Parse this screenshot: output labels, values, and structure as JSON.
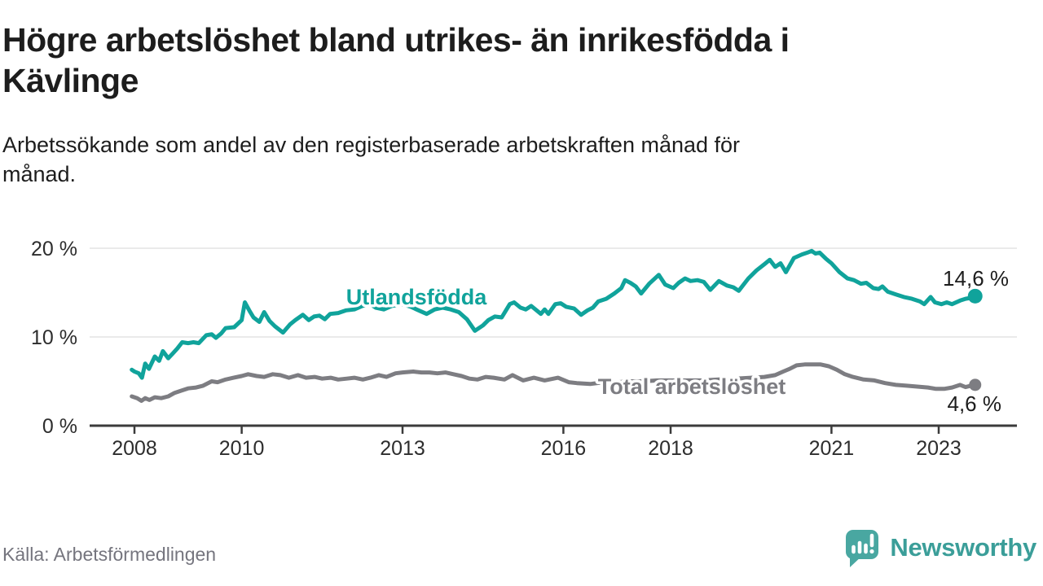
{
  "header": {
    "title": "Högre arbetslöshet bland utrikes- än inrikesfödda i\nKävlinge",
    "subtitle": "Arbetssökande som andel av den registerbaserade arbetskraften månad för\nmånad."
  },
  "footer": {
    "source": "Källa: Arbetsförmedlingen",
    "brand": "Newsworthy"
  },
  "colors": {
    "accent_teal": "#10a39b",
    "line_gray": "#7d7d82",
    "brand_teal": "#3b9e99",
    "icon_teal": "#49a7a1",
    "title_text": "#1d1d1d",
    "muted_text": "#75757e",
    "axis": "#3b3b3b",
    "tick_label": "#2d2d2d",
    "gridline": "#e3e3e3"
  },
  "chart_data": {
    "type": "line",
    "title": "Högre arbetslöshet bland utrikes- än inrikesfödda i Kävlinge",
    "subtitle": "Arbetssökande som andel av den registerbaserade arbetskraften månad för månad.",
    "grid": "horizontal-only",
    "legend_position": "inline-labels",
    "xlim": [
      2007.8,
      2024.3
    ],
    "ylim": [
      0,
      21.5
    ],
    "x_ticks": [
      {
        "value": 2008,
        "label": "2008"
      },
      {
        "value": 2010,
        "label": "2010"
      },
      {
        "value": 2013,
        "label": "2013"
      },
      {
        "value": 2016,
        "label": "2016"
      },
      {
        "value": 2018,
        "label": "2018"
      },
      {
        "value": 2021,
        "label": "2021"
      },
      {
        "value": 2023,
        "label": "2023"
      }
    ],
    "y_ticks": [
      {
        "value": 0,
        "label": "0 %"
      },
      {
        "value": 10,
        "label": "10 %"
      },
      {
        "value": 20,
        "label": "20 %"
      }
    ],
    "series": [
      {
        "name": "Utlandsfödda",
        "color": "#10a39b",
        "end_value": 14.6,
        "end_label": "14,6 %",
        "points": [
          [
            2007.95,
            6.3
          ],
          [
            2008.0,
            6.1
          ],
          [
            2008.08,
            5.9
          ],
          [
            2008.14,
            5.4
          ],
          [
            2008.2,
            7.0
          ],
          [
            2008.27,
            6.4
          ],
          [
            2008.38,
            7.8
          ],
          [
            2008.46,
            7.3
          ],
          [
            2008.53,
            8.4
          ],
          [
            2008.63,
            7.6
          ],
          [
            2008.71,
            8.1
          ],
          [
            2008.8,
            8.7
          ],
          [
            2008.89,
            9.4
          ],
          [
            2009.0,
            9.3
          ],
          [
            2009.1,
            9.4
          ],
          [
            2009.2,
            9.3
          ],
          [
            2009.34,
            10.2
          ],
          [
            2009.44,
            10.3
          ],
          [
            2009.52,
            9.9
          ],
          [
            2009.62,
            10.4
          ],
          [
            2009.7,
            11.0
          ],
          [
            2009.86,
            11.1
          ],
          [
            2010.0,
            11.9
          ],
          [
            2010.06,
            13.9
          ],
          [
            2010.15,
            12.9
          ],
          [
            2010.22,
            12.2
          ],
          [
            2010.33,
            11.7
          ],
          [
            2010.42,
            12.8
          ],
          [
            2010.52,
            11.8
          ],
          [
            2010.62,
            11.2
          ],
          [
            2010.77,
            10.5
          ],
          [
            2010.9,
            11.4
          ],
          [
            2011.0,
            11.9
          ],
          [
            2011.14,
            12.5
          ],
          [
            2011.25,
            11.9
          ],
          [
            2011.35,
            12.3
          ],
          [
            2011.45,
            12.4
          ],
          [
            2011.55,
            12.0
          ],
          [
            2011.65,
            12.6
          ],
          [
            2011.8,
            12.7
          ],
          [
            2011.95,
            13.0
          ],
          [
            2012.1,
            13.1
          ],
          [
            2012.25,
            13.5
          ],
          [
            2012.4,
            13.7
          ],
          [
            2012.5,
            13.3
          ],
          [
            2012.65,
            13.1
          ],
          [
            2012.8,
            13.5
          ],
          [
            2013.0,
            13.7
          ],
          [
            2013.15,
            13.4
          ],
          [
            2013.3,
            13.0
          ],
          [
            2013.45,
            12.6
          ],
          [
            2013.6,
            13.1
          ],
          [
            2013.75,
            13.3
          ],
          [
            2013.9,
            13.1
          ],
          [
            2014.05,
            12.8
          ],
          [
            2014.2,
            12.0
          ],
          [
            2014.35,
            10.7
          ],
          [
            2014.5,
            11.3
          ],
          [
            2014.6,
            11.9
          ],
          [
            2014.72,
            12.3
          ],
          [
            2014.85,
            12.2
          ],
          [
            2015.0,
            13.7
          ],
          [
            2015.08,
            13.9
          ],
          [
            2015.2,
            13.3
          ],
          [
            2015.3,
            13.1
          ],
          [
            2015.4,
            13.5
          ],
          [
            2015.5,
            13.0
          ],
          [
            2015.58,
            12.6
          ],
          [
            2015.65,
            13.1
          ],
          [
            2015.72,
            12.6
          ],
          [
            2015.85,
            13.7
          ],
          [
            2015.95,
            13.8
          ],
          [
            2016.05,
            13.4
          ],
          [
            2016.2,
            13.2
          ],
          [
            2016.33,
            12.5
          ],
          [
            2016.45,
            13.0
          ],
          [
            2016.55,
            13.3
          ],
          [
            2016.65,
            14.0
          ],
          [
            2016.8,
            14.3
          ],
          [
            2016.95,
            14.9
          ],
          [
            2017.08,
            15.5
          ],
          [
            2017.15,
            16.4
          ],
          [
            2017.25,
            16.1
          ],
          [
            2017.35,
            15.7
          ],
          [
            2017.45,
            14.9
          ],
          [
            2017.6,
            16.0
          ],
          [
            2017.78,
            17.0
          ],
          [
            2017.9,
            15.9
          ],
          [
            2018.05,
            15.5
          ],
          [
            2018.15,
            16.1
          ],
          [
            2018.27,
            16.6
          ],
          [
            2018.37,
            16.3
          ],
          [
            2018.5,
            16.4
          ],
          [
            2018.62,
            16.2
          ],
          [
            2018.74,
            15.3
          ],
          [
            2018.9,
            16.3
          ],
          [
            2019.05,
            15.8
          ],
          [
            2019.17,
            15.6
          ],
          [
            2019.27,
            15.2
          ],
          [
            2019.45,
            16.6
          ],
          [
            2019.6,
            17.5
          ],
          [
            2019.75,
            18.2
          ],
          [
            2019.85,
            18.7
          ],
          [
            2019.95,
            17.9
          ],
          [
            2020.05,
            18.3
          ],
          [
            2020.15,
            17.3
          ],
          [
            2020.3,
            18.9
          ],
          [
            2020.45,
            19.3
          ],
          [
            2020.55,
            19.5
          ],
          [
            2020.63,
            19.7
          ],
          [
            2020.7,
            19.4
          ],
          [
            2020.78,
            19.5
          ],
          [
            2020.9,
            18.8
          ],
          [
            2021.0,
            18.3
          ],
          [
            2021.15,
            17.3
          ],
          [
            2021.3,
            16.6
          ],
          [
            2021.42,
            16.4
          ],
          [
            2021.55,
            16.0
          ],
          [
            2021.65,
            16.1
          ],
          [
            2021.78,
            15.5
          ],
          [
            2021.88,
            15.4
          ],
          [
            2021.95,
            15.7
          ],
          [
            2022.05,
            15.1
          ],
          [
            2022.2,
            14.8
          ],
          [
            2022.35,
            14.5
          ],
          [
            2022.5,
            14.3
          ],
          [
            2022.65,
            14.0
          ],
          [
            2022.73,
            13.7
          ],
          [
            2022.85,
            14.5
          ],
          [
            2022.93,
            13.9
          ],
          [
            2023.05,
            13.7
          ],
          [
            2023.15,
            13.9
          ],
          [
            2023.25,
            13.7
          ],
          [
            2023.4,
            14.1
          ],
          [
            2023.5,
            14.3
          ],
          [
            2023.6,
            14.4
          ],
          [
            2023.68,
            14.6
          ]
        ]
      },
      {
        "name": "Total arbetslöshet",
        "color": "#7d7d82",
        "end_value": 4.6,
        "end_label": "4,6 %",
        "points": [
          [
            2007.95,
            3.3
          ],
          [
            2008.05,
            3.1
          ],
          [
            2008.13,
            2.8
          ],
          [
            2008.2,
            3.1
          ],
          [
            2008.28,
            2.9
          ],
          [
            2008.38,
            3.2
          ],
          [
            2008.5,
            3.1
          ],
          [
            2008.63,
            3.3
          ],
          [
            2008.75,
            3.7
          ],
          [
            2008.85,
            3.9
          ],
          [
            2009.0,
            4.2
          ],
          [
            2009.15,
            4.3
          ],
          [
            2009.28,
            4.5
          ],
          [
            2009.44,
            5.0
          ],
          [
            2009.55,
            4.9
          ],
          [
            2009.7,
            5.2
          ],
          [
            2009.85,
            5.4
          ],
          [
            2010.0,
            5.6
          ],
          [
            2010.12,
            5.8
          ],
          [
            2010.28,
            5.6
          ],
          [
            2010.42,
            5.5
          ],
          [
            2010.58,
            5.8
          ],
          [
            2010.72,
            5.7
          ],
          [
            2010.88,
            5.4
          ],
          [
            2011.05,
            5.7
          ],
          [
            2011.2,
            5.4
          ],
          [
            2011.36,
            5.5
          ],
          [
            2011.5,
            5.3
          ],
          [
            2011.66,
            5.4
          ],
          [
            2011.8,
            5.2
          ],
          [
            2011.96,
            5.3
          ],
          [
            2012.1,
            5.4
          ],
          [
            2012.26,
            5.2
          ],
          [
            2012.4,
            5.4
          ],
          [
            2012.56,
            5.7
          ],
          [
            2012.7,
            5.5
          ],
          [
            2012.87,
            5.9
          ],
          [
            2013.0,
            6.0
          ],
          [
            2013.2,
            6.1
          ],
          [
            2013.35,
            6.0
          ],
          [
            2013.5,
            6.0
          ],
          [
            2013.65,
            5.9
          ],
          [
            2013.8,
            6.0
          ],
          [
            2013.95,
            5.8
          ],
          [
            2014.1,
            5.6
          ],
          [
            2014.25,
            5.3
          ],
          [
            2014.4,
            5.2
          ],
          [
            2014.55,
            5.5
          ],
          [
            2014.7,
            5.4
          ],
          [
            2014.9,
            5.2
          ],
          [
            2015.05,
            5.7
          ],
          [
            2015.25,
            5.1
          ],
          [
            2015.45,
            5.4
          ],
          [
            2015.65,
            5.1
          ],
          [
            2015.9,
            5.4
          ],
          [
            2016.1,
            4.9
          ],
          [
            2016.25,
            4.8
          ],
          [
            2016.5,
            4.7
          ],
          [
            2016.75,
            4.9
          ],
          [
            2017.0,
            4.9
          ],
          [
            2017.25,
            5.0
          ],
          [
            2017.5,
            5.0
          ],
          [
            2017.75,
            5.1
          ],
          [
            2018.0,
            5.1
          ],
          [
            2018.3,
            5.1
          ],
          [
            2018.6,
            5.1
          ],
          [
            2018.9,
            5.2
          ],
          [
            2019.2,
            5.3
          ],
          [
            2019.5,
            5.4
          ],
          [
            2019.75,
            5.5
          ],
          [
            2019.95,
            5.7
          ],
          [
            2020.1,
            6.1
          ],
          [
            2020.22,
            6.4
          ],
          [
            2020.35,
            6.8
          ],
          [
            2020.5,
            6.9
          ],
          [
            2020.65,
            6.9
          ],
          [
            2020.8,
            6.9
          ],
          [
            2020.95,
            6.7
          ],
          [
            2021.1,
            6.3
          ],
          [
            2021.25,
            5.8
          ],
          [
            2021.4,
            5.5
          ],
          [
            2021.6,
            5.2
          ],
          [
            2021.8,
            5.1
          ],
          [
            2022.0,
            4.8
          ],
          [
            2022.2,
            4.6
          ],
          [
            2022.4,
            4.5
          ],
          [
            2022.6,
            4.4
          ],
          [
            2022.8,
            4.3
          ],
          [
            2022.95,
            4.15
          ],
          [
            2023.1,
            4.15
          ],
          [
            2023.25,
            4.3
          ],
          [
            2023.4,
            4.6
          ],
          [
            2023.5,
            4.35
          ],
          [
            2023.6,
            4.5
          ],
          [
            2023.68,
            4.6
          ]
        ]
      }
    ]
  }
}
